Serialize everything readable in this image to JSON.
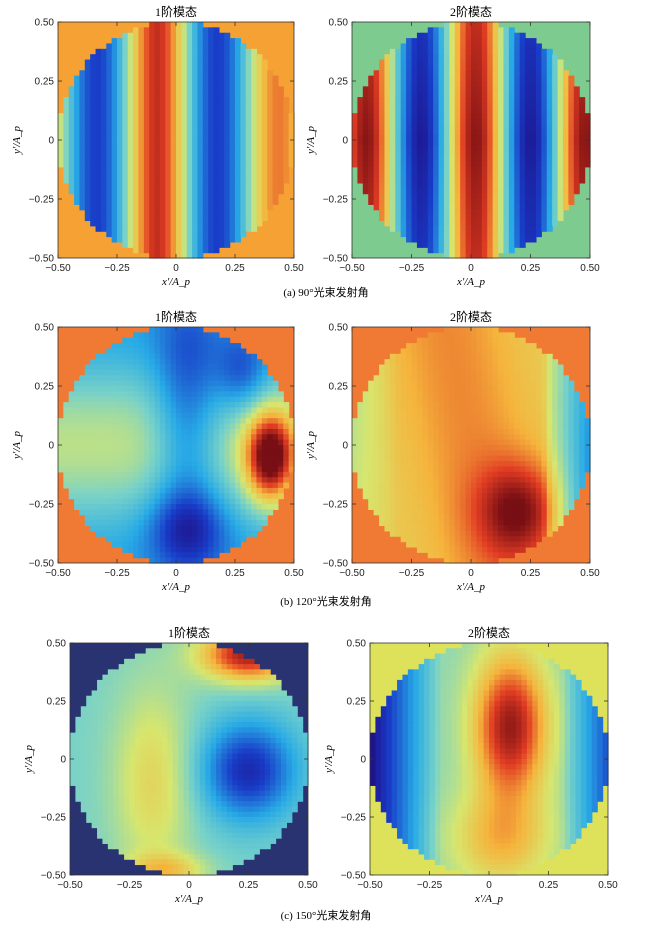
{
  "chart_data": [
    {
      "type": "heatmap",
      "title": "1阶模态",
      "xlabel": "x′/A_p",
      "ylabel": "y′/A_p",
      "xlim": [
        -0.5,
        0.5
      ],
      "ylim": [
        -0.5,
        0.5
      ],
      "xticks": [
        "−0.50",
        "−0.25",
        "0",
        "0.25",
        "0.50"
      ],
      "yticks": [
        "0.50",
        "0.25",
        "0",
        "−0.25",
        "−0.50"
      ],
      "background": "#F5A133",
      "pattern": "vertical bands; dark red band near x≈−0.08; blue bands near x≈−0.40, 0.10, 0.40; green near x≈0.25",
      "group_caption": "(a) 90°光束发射角"
    },
    {
      "type": "heatmap",
      "title": "2阶模态",
      "xlabel": "x′/A_p",
      "ylabel": "y′/A_p",
      "xlim": [
        -0.5,
        0.5
      ],
      "ylim": [
        -0.5,
        0.5
      ],
      "xticks": [
        "−0.50",
        "−0.25",
        "0",
        "0.25",
        "0.50"
      ],
      "yticks": [
        "0.50",
        "0.25",
        "0",
        "−0.25",
        "−0.50"
      ],
      "background": "#7ECB8F",
      "pattern": "vertical bands; dark red center band near x≈0.02; dark blue bands near x≈−0.20 and x≈0.42",
      "group_caption": "(a) 90°光束发射角"
    },
    {
      "type": "heatmap",
      "title": "1阶模态",
      "xlabel": "x′/A_p",
      "ylabel": "y′/A_p",
      "xlim": [
        -0.5,
        0.5
      ],
      "ylim": [
        -0.5,
        0.5
      ],
      "xticks": [
        "−0.50",
        "−0.25",
        "0",
        "0.25",
        "0.50"
      ],
      "yticks": [
        "0.50",
        "0.25",
        "0",
        "−0.25",
        "−0.50"
      ],
      "background": "#F07A33",
      "pattern": "red hot spot near (0.40, −0.05); blue valleys centered around x≈0.05",
      "group_caption": "(b) 120°光束发射角"
    },
    {
      "type": "heatmap",
      "title": "2阶模态",
      "xlabel": "x′/A_p",
      "ylabel": "y′/A_p",
      "xlim": [
        -0.5,
        0.5
      ],
      "ylim": [
        -0.5,
        0.5
      ],
      "xticks": [
        "−0.50",
        "−0.25",
        "0",
        "0.25",
        "0.50"
      ],
      "yticks": [
        "0.50",
        "0.25",
        "0",
        "−0.25",
        "−0.50"
      ],
      "background": "#F07A33",
      "pattern": "broad red region with maximum near (0.20, −0.28); blue near right edge x≈0.45",
      "group_caption": "(b) 120°光束发射角"
    },
    {
      "type": "heatmap",
      "title": "1阶模态",
      "xlabel": "x′/A_p",
      "ylabel": "y′/A_p",
      "xlim": [
        -0.5,
        0.5
      ],
      "ylim": [
        -0.5,
        0.5
      ],
      "xticks": [
        "−0.50",
        "−0.25",
        "0",
        "0.25",
        "0.50"
      ],
      "yticks": [
        "0.50",
        "0.25",
        "0",
        "−0.25",
        "−0.50"
      ],
      "background": "#2A3371",
      "pattern": "blue minimum near (0.25, −0.05); red near top right (0.25, 0.42); yellow near (−0.15, −0.10)",
      "group_caption": "(c) 150°光束发射角"
    },
    {
      "type": "heatmap",
      "title": "2阶模态",
      "xlabel": "x′/A_p",
      "ylabel": "y′/A_p",
      "xlim": [
        -0.5,
        0.5
      ],
      "ylim": [
        -0.5,
        0.5
      ],
      "xticks": [
        "−0.50",
        "−0.25",
        "0",
        "0.25",
        "0.50"
      ],
      "yticks": [
        "0.50",
        "0.25",
        "0",
        "−0.25",
        "−0.50"
      ],
      "background": "#DDE25A",
      "pattern": "red column centered near x≈0.08 with maximum near (0.10, 0.15); blue on both side edges",
      "group_caption": "(c) 150°光束发射角"
    }
  ],
  "captions": [
    "(a) 90°光束发射角",
    "(b) 120°光束发射角",
    "(c) 150°光束发射角"
  ]
}
